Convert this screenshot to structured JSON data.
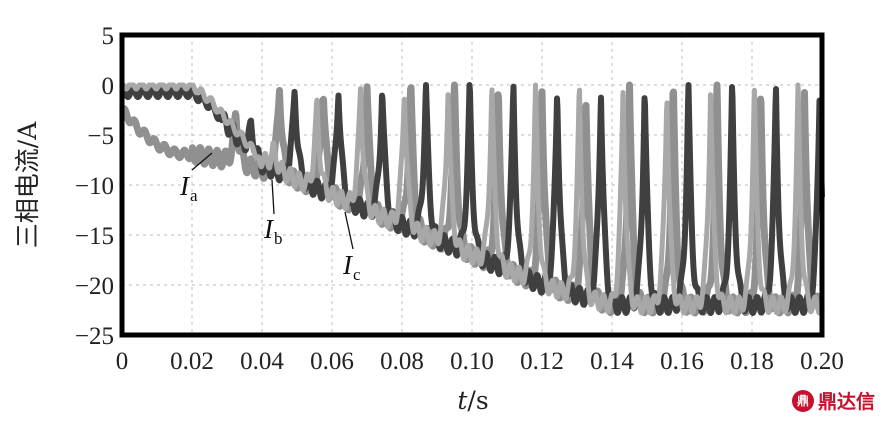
{
  "chart_data": {
    "type": "line",
    "xlabel_italic": "t",
    "xlabel_rest": "/s",
    "ylabel": "三相电流/A",
    "xlim": [
      0,
      0.2
    ],
    "ylim": [
      -25,
      5
    ],
    "x_ticks": [
      "0",
      "0.02",
      "0.04",
      "0.06",
      "0.08",
      "0.10",
      "0.12",
      "0.14",
      "0.16",
      "0.18",
      "0.20"
    ],
    "y_ticks": [
      "5",
      "0",
      "−5",
      "−10",
      "−15",
      "−20",
      "−25"
    ],
    "grid": true,
    "series": [
      {
        "name": "I_a",
        "label_main": "I",
        "label_sub": "a",
        "color": "#909090",
        "description_points": {
          "x": [
            0,
            0.005,
            0.01,
            0.015,
            0.02,
            0.025,
            0.03,
            0.035,
            0.04,
            0.05,
            0.06,
            0.07,
            0.08,
            0.09,
            0.1,
            0.11,
            0.12,
            0.14,
            0.16,
            0.18,
            0.2
          ],
          "y": [
            -2.5,
            -4.5,
            -6.0,
            -6.8,
            -7.0,
            -7.2,
            -7.5,
            -8.0,
            -8.5,
            -9.5,
            -11.0,
            -12.5,
            -14.0,
            -15.5,
            -17.0,
            -18.5,
            -20.0,
            -22.0,
            -22.0,
            -22.0,
            -22.0
          ]
        }
      },
      {
        "name": "I_b",
        "label_main": "I",
        "label_sub": "b",
        "color": "#404040",
        "description_points": {
          "x": [
            0,
            0.005,
            0.01,
            0.015,
            0.02,
            0.025,
            0.03,
            0.035,
            0.04,
            0.05,
            0.06,
            0.07,
            0.08,
            0.09,
            0.1,
            0.11,
            0.12,
            0.14,
            0.16,
            0.18,
            0.2
          ],
          "y": [
            -0.8,
            -0.8,
            -0.8,
            -0.8,
            -0.8,
            -2.0,
            -4.0,
            -6.0,
            -8.0,
            -9.5,
            -11.0,
            -12.5,
            -14.0,
            -15.5,
            -17.0,
            -18.5,
            -20.0,
            -22.0,
            -22.0,
            -22.0,
            -22.0
          ]
        }
      },
      {
        "name": "I_c",
        "label_main": "I",
        "label_sub": "c",
        "color": "#a8a8a8",
        "description_points": {
          "x": [
            0,
            0.005,
            0.01,
            0.015,
            0.02,
            0.025,
            0.03,
            0.035,
            0.04,
            0.05,
            0.06,
            0.07,
            0.08,
            0.09,
            0.1,
            0.11,
            0.12,
            0.14,
            0.16,
            0.18,
            0.2
          ],
          "y": [
            0,
            0,
            0,
            0,
            0,
            -1.5,
            -3.5,
            -5.5,
            -7.5,
            -9.5,
            -11.0,
            -12.5,
            -14.0,
            -15.5,
            -17.0,
            -18.5,
            -20.0,
            -22.0,
            -22.0,
            -22.0,
            -22.0
          ]
        }
      }
    ]
  },
  "watermark": {
    "logo_glyph": "鼎",
    "text": "鼎达信"
  }
}
